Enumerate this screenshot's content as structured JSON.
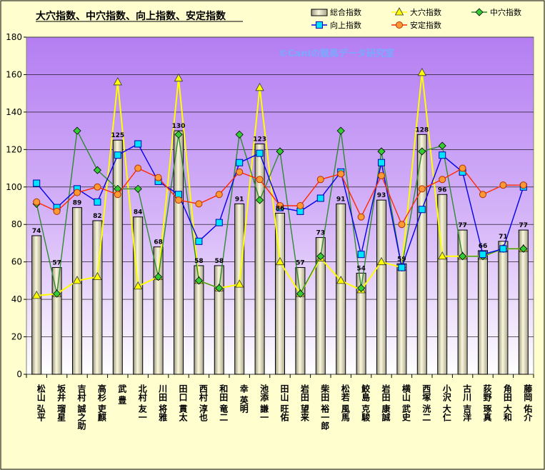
{
  "chart_data": {
    "type": "bar",
    "title": "大穴指数、中穴指数、向上指数、安定指数",
    "watermark": "©Caniの競馬データ研究室",
    "ylim": [
      0,
      180
    ],
    "yticks": [
      0,
      20,
      40,
      60,
      80,
      100,
      120,
      140,
      160,
      180
    ],
    "grid": true,
    "legend_position": "top-right",
    "categories": [
      "松山 弘平",
      "坂井 瑠星",
      "吉村 誠之助",
      "高杉 吏麒",
      "武 豊",
      "北村 友一",
      "川田 将雅",
      "田口 貫太",
      "西村 淳也",
      "和田 竜二",
      "幸 英明",
      "池添 謙一",
      "田山 旺佑",
      "岩田 望来",
      "柴田 裕一郎",
      "松若 風馬",
      "鮫島 克駿",
      "岩田 康誠",
      "横山 武史",
      "西塚 洸二",
      "小沢 大仁",
      "古川 吉洋",
      "荻野 琢真",
      "角田 大和",
      "藤岡 佑介"
    ],
    "series": [
      {
        "name": "総合指数",
        "type": "bar",
        "color": "#f3efc4",
        "values": [
          74,
          57,
          89,
          82,
          125,
          84,
          68,
          130,
          58,
          58,
          91,
          123,
          86,
          57,
          73,
          91,
          54,
          93,
          59,
          128,
          96,
          77,
          66,
          71,
          77
        ]
      },
      {
        "name": "大穴指数",
        "type": "line",
        "color": "#ffff00",
        "marker": "triangle",
        "values": [
          42,
          43,
          50,
          52,
          156,
          47,
          52,
          158,
          50,
          46,
          48,
          153,
          60,
          43,
          62,
          50,
          45,
          60,
          57,
          161,
          63,
          63,
          63,
          67,
          67
        ]
      },
      {
        "name": "中穴指数",
        "type": "line",
        "color": "#2e8b2e",
        "marker": "diamond",
        "values": [
          91,
          43,
          130,
          109,
          99,
          99,
          52,
          128,
          50,
          46,
          128,
          93,
          119,
          43,
          63,
          130,
          46,
          119,
          57,
          119,
          122,
          63,
          63,
          67,
          67
        ]
      },
      {
        "name": "向上指数",
        "type": "line",
        "color": "#0000ee",
        "marker": "square",
        "values": [
          102,
          89,
          99,
          92,
          117,
          123,
          103,
          96,
          71,
          81,
          113,
          118,
          89,
          87,
          94,
          108,
          64,
          113,
          57,
          88,
          117,
          108,
          64,
          67,
          100
        ]
      },
      {
        "name": "安定指数",
        "type": "line",
        "color": "#ff2a00",
        "marker": "circle",
        "values": [
          92,
          87,
          97,
          100,
          96,
          110,
          105,
          93,
          91,
          96,
          108,
          104,
          90,
          90,
          104,
          107,
          84,
          106,
          80,
          99,
          104,
          110,
          96,
          101,
          101
        ]
      }
    ]
  }
}
